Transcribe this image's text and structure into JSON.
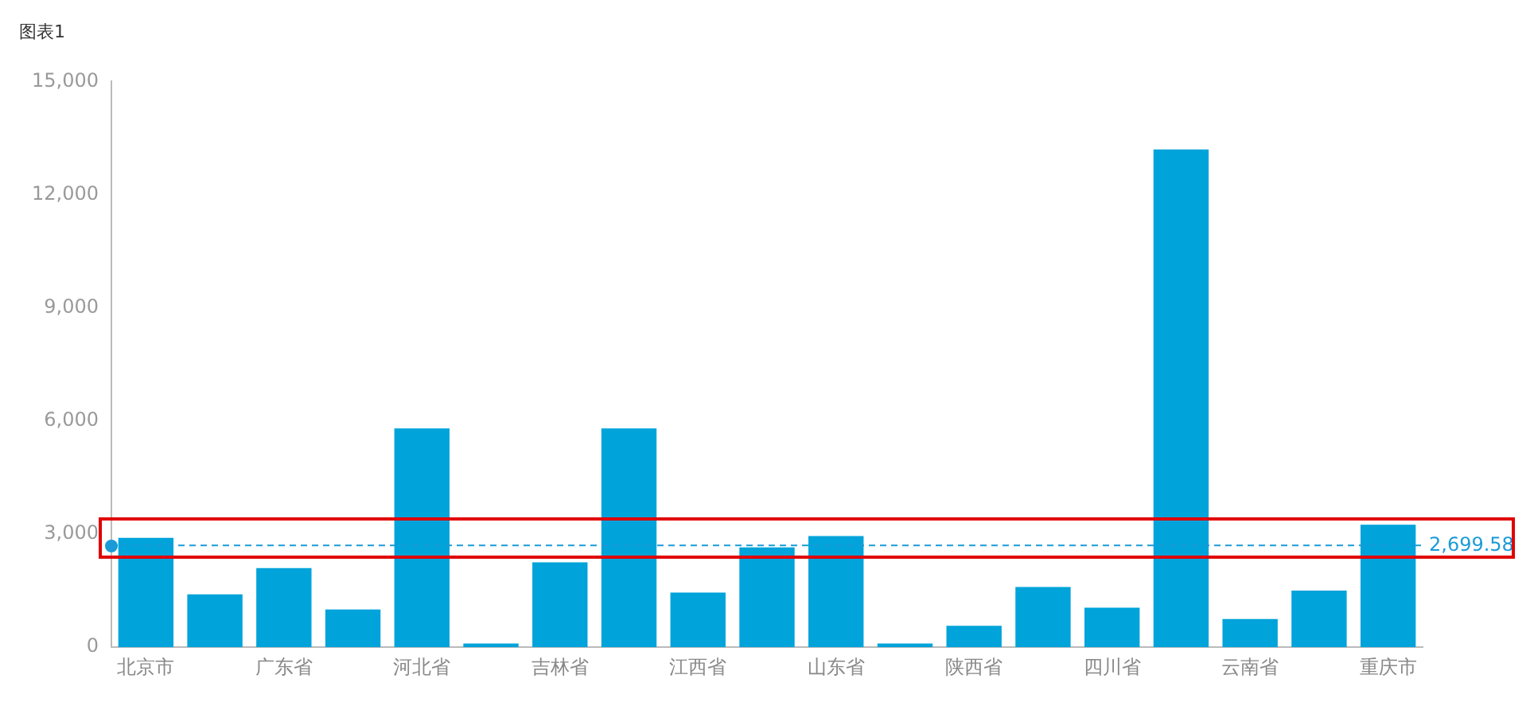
{
  "chart_data": {
    "type": "bar",
    "title": "图表1",
    "categories": [
      "北京市",
      null,
      "广东省",
      null,
      "河北省",
      null,
      "吉林省",
      null,
      "江西省",
      null,
      "山东省",
      null,
      "陕西省",
      null,
      "四川省",
      null,
      "云南省",
      null,
      "重庆市"
    ],
    "values": [
      2900,
      1400,
      2100,
      1000,
      5800,
      100,
      2250,
      5800,
      1450,
      2650,
      2950,
      100,
      570,
      1600,
      1050,
      13200,
      750,
      1500,
      3250
    ],
    "color": "#00a3da",
    "ylim": [
      0,
      15000
    ],
    "yticks": [
      {
        "value": 0,
        "label": "0"
      },
      {
        "value": 3000,
        "label": "3,000"
      },
      {
        "value": 6000,
        "label": "6,000"
      },
      {
        "value": 9000,
        "label": "9,000"
      },
      {
        "value": 12000,
        "label": "12,000"
      },
      {
        "value": 15000,
        "label": "15,000"
      }
    ],
    "grid": false,
    "legend": false,
    "ref_lines": [
      {
        "axis": "y",
        "value": 2699.58,
        "label": "2,699.58",
        "color": "#1a9bd7",
        "line_style": "dashed"
      }
    ]
  }
}
